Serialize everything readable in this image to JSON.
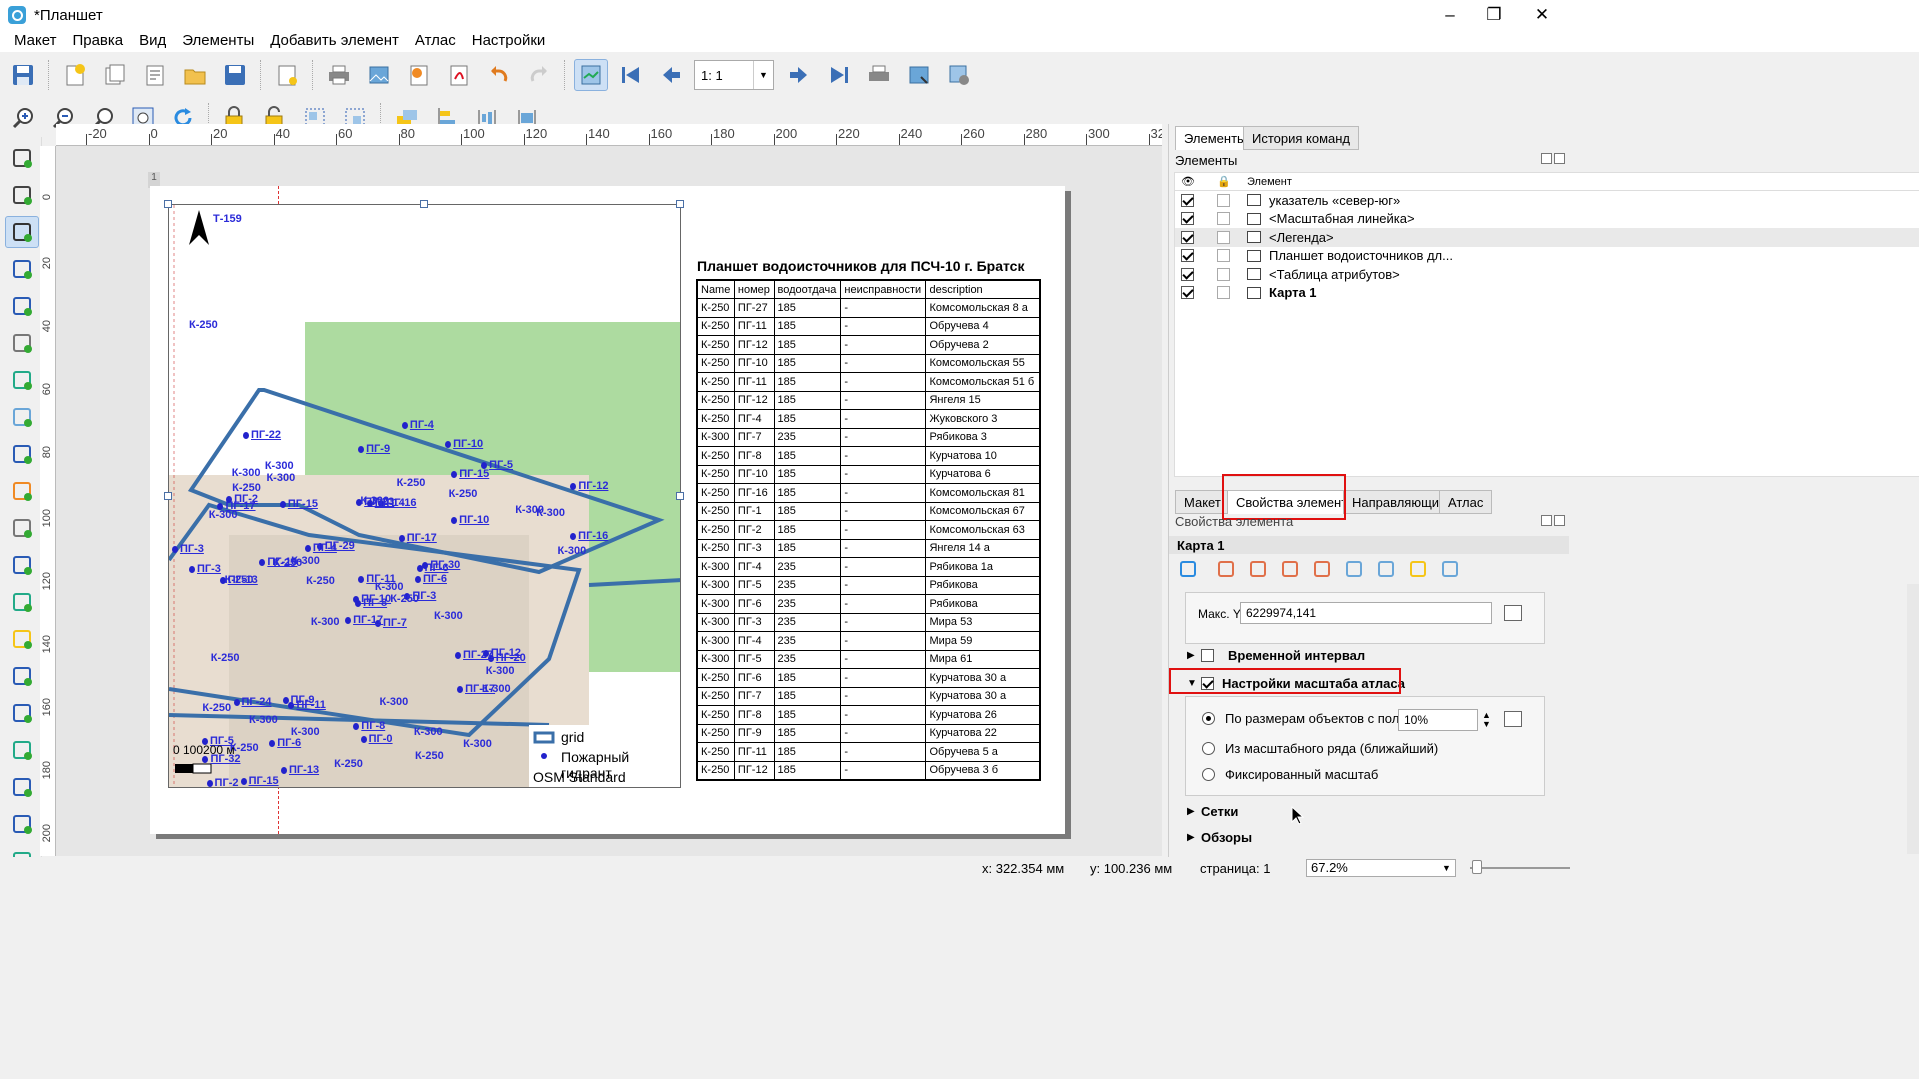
{
  "window": {
    "title": "*Планшет",
    "minimize": "–",
    "maximize": "❐",
    "close": "✕"
  },
  "menu": [
    "Макет",
    "Правка",
    "Вид",
    "Элементы",
    "Добавить элемент",
    "Атлас",
    "Настройки"
  ],
  "toolbar1": {
    "icons": [
      "save-icon",
      "new-layout-icon",
      "duplicate-layout-icon",
      "layout-manager-icon",
      "open-template-icon",
      "save-template-icon",
      "page-setup-icon",
      "print-icon",
      "export-image-icon",
      "export-svg-icon",
      "export-pdf-icon",
      "undo-icon",
      "redo-icon",
      "atlas-preview-icon",
      "atlas-first-icon",
      "atlas-prev-icon"
    ],
    "atlas_page": "1: 1",
    "icons_after": [
      "atlas-next-icon",
      "atlas-last-icon",
      "atlas-print-icon",
      "atlas-export-icon",
      "atlas-settings-icon"
    ]
  },
  "toolbar2": {
    "icons": [
      "zoom-in-icon",
      "zoom-out-icon",
      "zoom-100-icon",
      "zoom-full-icon",
      "refresh-icon",
      "lock-items-icon",
      "unlock-items-icon",
      "group-items-icon",
      "ungroup-items-icon",
      "raise-items-icon",
      "align-left-icon",
      "distribute-icon",
      "resize-icon"
    ]
  },
  "lefttools": [
    "pan-icon",
    "zoom-tool-icon",
    "select-move-icon",
    "move-content-icon",
    "edit-nodes-icon",
    "add-map-icon",
    "add-3d-map-icon",
    "add-picture-icon",
    "add-label-icon",
    "add-legend-icon",
    "add-scalebar-icon",
    "add-north-arrow-icon",
    "add-shape-icon",
    "add-marker-icon",
    "add-arrow-icon",
    "add-polyline-icon",
    "add-html-icon",
    "add-attribute-table-icon",
    "add-fixed-table-icon",
    "add-elevation-profile-icon"
  ],
  "ruler_top": [
    "-20",
    "0",
    "20",
    "40",
    "60",
    "80",
    "100",
    "120",
    "140",
    "160",
    "180",
    "200",
    "220",
    "240",
    "260",
    "280",
    "300",
    "320"
  ],
  "ruler_left": [
    "0",
    "20",
    "40",
    "60",
    "80",
    "100",
    "120",
    "140",
    "160",
    "180",
    "200"
  ],
  "page": {
    "page_number": "1",
    "title": "Планшет водоисточников для ПСЧ-10 г. Братск",
    "table": {
      "headers": [
        "Name",
        "номер",
        "водоотдача",
        "неисправности",
        "description"
      ],
      "rows": [
        [
          "К-250",
          "ПГ-27",
          "185",
          "-",
          "Комсомольская 8 а"
        ],
        [
          "К-250",
          "ПГ-11",
          "185",
          "-",
          "Обручева 4"
        ],
        [
          "К-250",
          "ПГ-12",
          "185",
          "-",
          "Обручева 2"
        ],
        [
          "К-250",
          "ПГ-10",
          "185",
          "-",
          "Комсомольская 55"
        ],
        [
          "К-250",
          "ПГ-11",
          "185",
          "-",
          "Комсомольская 51 б"
        ],
        [
          "К-250",
          "ПГ-12",
          "185",
          "-",
          "Янгеля 15"
        ],
        [
          "К-250",
          "ПГ-4",
          "185",
          "-",
          "Жуковского 3"
        ],
        [
          "К-300",
          "ПГ-7",
          "235",
          "-",
          "Рябикова 3"
        ],
        [
          "К-250",
          "ПГ-8",
          "185",
          "-",
          "Курчатова 10"
        ],
        [
          "К-250",
          "ПГ-10",
          "185",
          "-",
          "Курчатова 6"
        ],
        [
          "К-250",
          "ПГ-16",
          "185",
          "-",
          "Комсомольская 81"
        ],
        [
          "К-250",
          "ПГ-1",
          "185",
          "-",
          "Комсомольская 67"
        ],
        [
          "К-250",
          "ПГ-2",
          "185",
          "-",
          "Комсомольская 63"
        ],
        [
          "К-250",
          "ПГ-3",
          "185",
          "-",
          "Янгеля 14 а"
        ],
        [
          "К-300",
          "ПГ-4",
          "235",
          "-",
          "Рябикова 1а"
        ],
        [
          "К-300",
          "ПГ-5",
          "235",
          "-",
          "Рябикова"
        ],
        [
          "К-300",
          "ПГ-6",
          "235",
          "-",
          "Рябикова"
        ],
        [
          "К-300",
          "ПГ-3",
          "235",
          "-",
          "Мира 53"
        ],
        [
          "К-300",
          "ПГ-4",
          "235",
          "-",
          "Мира 59"
        ],
        [
          "К-300",
          "ПГ-5",
          "235",
          "-",
          "Мира 61"
        ],
        [
          "К-250",
          "ПГ-6",
          "185",
          "-",
          "Курчатова 30 а"
        ],
        [
          "К-250",
          "ПГ-7",
          "185",
          "-",
          "Курчатова 30 а"
        ],
        [
          "К-250",
          "ПГ-8",
          "185",
          "-",
          "Курчатова 26"
        ],
        [
          "К-250",
          "ПГ-9",
          "185",
          "-",
          "Курчатова 22"
        ],
        [
          "К-250",
          "ПГ-11",
          "185",
          "-",
          "Обручева 5 а"
        ],
        [
          "К-250",
          "ПГ-12",
          "185",
          "-",
          "Обручева 3 б"
        ]
      ]
    },
    "map": {
      "labels_top": [
        "Т-159",
        "К-250"
      ],
      "hydrant_labels": [
        "ПГ-7",
        "ПГ-17",
        "ПГ-8",
        "ПГ-5",
        "ПГ-6",
        "ПГ-11",
        "ПГ-10",
        "ПГ-16",
        "ПГ-15",
        "ПГ-3",
        "ПГ-22",
        "ПГ-1",
        "ПГ-13",
        "ПГ-12",
        "ПГ-17",
        "ПГ-10",
        "ПГ-15",
        "ПГ-23",
        "ПГ-17",
        "ПГ-24",
        "ПГ-29",
        "ПГ-32",
        "ПГ-6",
        "ПГ-14",
        "ПГ-30",
        "ПГ-20",
        "ПГ-2",
        "ПГ-9",
        "ПГ-3",
        "ПГ-27",
        "ПГ-16",
        "ПГ-10",
        "ПГ-8",
        "ПГ-11",
        "ПГ-15",
        "ПГ-5",
        "ПГ-9",
        "ПГ-6",
        "ПГ-3",
        "ПГ-12",
        "ПГ-4",
        "ПГ-4",
        "ПГ-10",
        "ПГ-17",
        "ПГ-13",
        "ПГ-3",
        "ПГ-6",
        "ПГ-2",
        "ПГ-0"
      ],
      "capacity_labels": [
        "К-300",
        "К-300",
        "К-300",
        "К-300",
        "К-300",
        "К-300",
        "К-300",
        "К-300",
        "К-300",
        "К-300",
        "К-300",
        "К-250",
        "К-300",
        "К-250",
        "К-300",
        "К-300",
        "К-300",
        "К-250",
        "К-300",
        "К-250",
        "К-250",
        "К-300",
        "К-250",
        "К-300",
        "К-250",
        "К-250",
        "К-250",
        "К-250",
        "К-250",
        "К-300",
        "К-250"
      ],
      "scalebar_text": "0 100200 м",
      "legend": {
        "grid": "grid",
        "hydrant": "Пожарный гидрант",
        "osm": "OSM Standard"
      }
    }
  },
  "status": {
    "x": "x: 322.354 мм",
    "y": "y: 100.236 мм",
    "page": "страница: 1",
    "zoom": "67.2%"
  },
  "panel": {
    "tabs_top": [
      "Элементы",
      "История команд"
    ],
    "items_title": "Элементы",
    "tree_header": "Элемент",
    "items": [
      {
        "label": "указатель «север-юг»",
        "visible": true,
        "bold": false,
        "icon": "picture-item-icon"
      },
      {
        "label": "<Масштабная линейка>",
        "visible": true,
        "bold": false,
        "icon": "scalebar-item-icon"
      },
      {
        "label": "<Легенда>",
        "visible": true,
        "bold": false,
        "icon": "legend-item-icon"
      },
      {
        "label": "Планшет водоисточников дл...",
        "visible": true,
        "bold": false,
        "icon": "label-item-icon"
      },
      {
        "label": "<Таблица атрибутов>",
        "visible": true,
        "bold": false,
        "icon": "table-item-icon"
      },
      {
        "label": "Карта 1",
        "visible": true,
        "bold": true,
        "icon": "map-item-icon"
      }
    ],
    "tabs_bottom": [
      "Макет",
      "Свойства элемента",
      "Направляющие",
      "Атлас"
    ],
    "props_title": "Свойства элемента",
    "item_name": "Карта 1",
    "max_y_label": "Макс. Y",
    "max_y_value": "6229974,141",
    "temporal_label": "Временной интервал",
    "atlas_scale_label": "Настройки масштаба атласа",
    "options": [
      "По размерам объектов с полем",
      "Из масштабного ряда (ближайший)",
      "Фиксированный масштаб"
    ],
    "margin_value": "10%",
    "grids_label": "Сетки",
    "overviews_label": "Обзоры"
  }
}
